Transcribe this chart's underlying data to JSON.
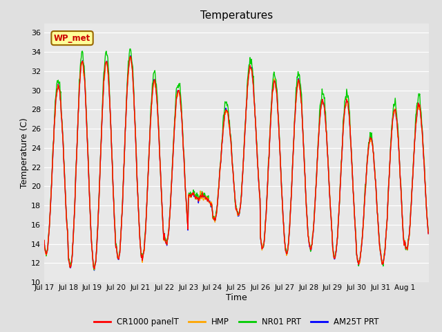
{
  "title": "Temperatures",
  "xlabel": "Time",
  "ylabel": "Temperature (C)",
  "ylim": [
    10,
    37
  ],
  "yticks": [
    10,
    12,
    14,
    16,
    18,
    20,
    22,
    24,
    26,
    28,
    30,
    32,
    34,
    36
  ],
  "bg_color": "#e0e0e0",
  "plot_bg_color": "#e8e8e8",
  "legend_entries": [
    "CR1000 panelT",
    "HMP",
    "NR01 PRT",
    "AM25T PRT"
  ],
  "legend_colors": [
    "#ff0000",
    "#ffa500",
    "#00cc00",
    "#0000ff"
  ],
  "station_label": "WP_met",
  "station_label_color": "#cc0000",
  "station_label_bg": "#ffff99",
  "station_label_border": "#996600",
  "x_tick_labels": [
    "Jul 17",
    "Jul 18",
    "Jul 19",
    "Jul 20",
    "Jul 21",
    "Jul 22",
    "Jul 23",
    "Jul 24",
    "Jul 25",
    "Jul 26",
    "Jul 27",
    "Jul 28",
    "Jul 29",
    "Jul 30",
    "Jul 31",
    "Aug 1"
  ],
  "line_width": 1.0,
  "day_peaks": [
    30.5,
    33.0,
    33.0,
    33.5,
    31.0,
    30.0,
    19.0,
    28.0,
    32.5,
    31.0,
    31.0,
    29.0,
    29.0,
    25.0,
    28.0,
    28.5
  ],
  "day_troughs": [
    13.0,
    11.5,
    11.5,
    12.5,
    12.5,
    14.0,
    17.8,
    16.5,
    17.0,
    13.5,
    13.0,
    13.5,
    12.5,
    12.0,
    12.0,
    13.5
  ],
  "peak_hour": 14,
  "trough_hour": 5,
  "samples_per_day": 48,
  "n_days": 16
}
